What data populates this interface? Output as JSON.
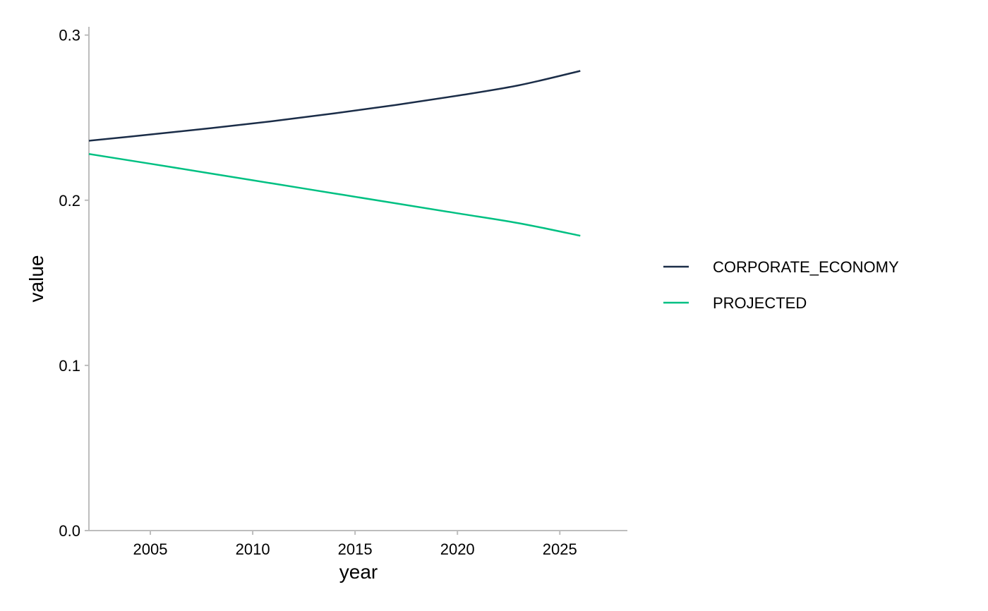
{
  "chart_data": {
    "type": "line",
    "title": "",
    "xlabel": "year",
    "ylabel": "value",
    "xlim": [
      2002,
      2028.3
    ],
    "ylim": [
      0,
      0.305
    ],
    "x_ticks": [
      2005,
      2010,
      2015,
      2020,
      2025
    ],
    "y_ticks": [
      0.0,
      0.1,
      0.2,
      0.3
    ],
    "y_tick_labels": [
      "0.0",
      "0.1",
      "0.2",
      "0.3"
    ],
    "grid": false,
    "legend_position": "right",
    "x": [
      2002,
      2005,
      2008,
      2011,
      2014,
      2017,
      2020,
      2023,
      2026
    ],
    "series": [
      {
        "name": "CORPORATE_ECONOMY",
        "color": "#1b2d48",
        "values": [
          0.236,
          0.2398,
          0.2437,
          0.2479,
          0.2526,
          0.2577,
          0.2633,
          0.2696,
          0.2783
        ]
      },
      {
        "name": "PROJECTED",
        "color": "#00c082",
        "values": [
          0.228,
          0.2221,
          0.2161,
          0.2101,
          0.2041,
          0.1981,
          0.1921,
          0.1861,
          0.1785
        ]
      }
    ]
  }
}
